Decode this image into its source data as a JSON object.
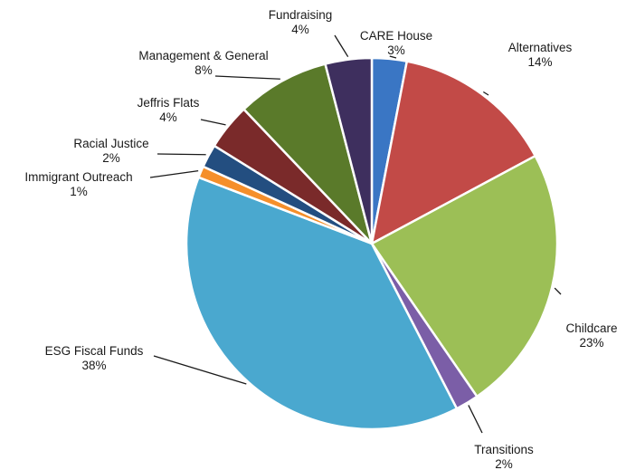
{
  "chart_data": {
    "type": "pie",
    "slices": [
      {
        "name": "CARE House",
        "value": 3,
        "label": "3%",
        "color": "#3a76c4"
      },
      {
        "name": "Alternatives",
        "value": 14,
        "label": "14%",
        "color": "#c24a47"
      },
      {
        "name": "Childcare",
        "value": 23,
        "label": "23%",
        "color": "#9cbf56"
      },
      {
        "name": "Transitions",
        "value": 2,
        "label": "2%",
        "color": "#7b5ea7"
      },
      {
        "name": "ESG Fiscal Funds",
        "value": 38,
        "label": "38%",
        "color": "#4aa8cf"
      },
      {
        "name": "Immigrant Outreach",
        "value": 1,
        "label": "1%",
        "color": "#f58f2b"
      },
      {
        "name": "Racial Justice",
        "value": 2,
        "label": "2%",
        "color": "#234e80"
      },
      {
        "name": "Jeffris Flats",
        "value": 4,
        "label": "4%",
        "color": "#7a2a2a"
      },
      {
        "name": "Management & General",
        "value": 8,
        "label": "8%",
        "color": "#5a7a2a"
      },
      {
        "name": "Fundraising",
        "value": 4,
        "label": "4%",
        "color": "#3e2f5e"
      }
    ]
  }
}
